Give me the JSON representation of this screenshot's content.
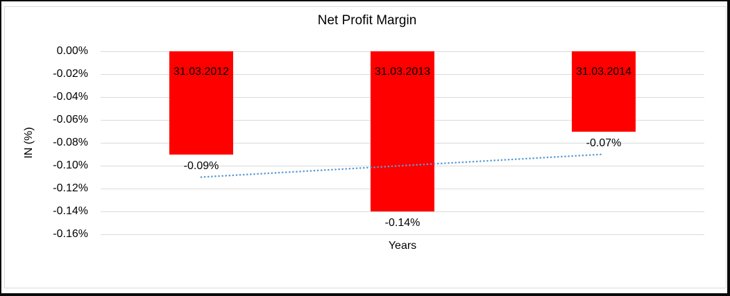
{
  "frame": {
    "background": "#ffffff",
    "border_color": "#0a0a0a",
    "inner_border_color": "#dcdcdc"
  },
  "chart_data": {
    "type": "bar",
    "title": "Net Profit Margin",
    "xlabel": "Years",
    "ylabel": "IN (%)",
    "categories": [
      "31.03.2012",
      "31.03.2013",
      "31.03.2014"
    ],
    "series": [
      {
        "name": "Net Profit Margin",
        "values": [
          -0.09,
          -0.14,
          -0.07
        ],
        "color": "#ff0000"
      }
    ],
    "value_labels": [
      "-0.09%",
      "-0.14%",
      "-0.07%"
    ],
    "y_ticks": [
      "0.00%",
      "-0.02%",
      "-0.04%",
      "-0.06%",
      "-0.08%",
      "-0.10%",
      "-0.12%",
      "-0.14%",
      "-0.16%"
    ],
    "ylim": [
      -0.16,
      0
    ],
    "y_tick_step": -0.02,
    "grid": true,
    "gridline_color": "#d9d9d9",
    "legend": "none",
    "trendline": {
      "style": "dotted",
      "color": "#5b9bd5",
      "start_value": -0.11,
      "end_value": -0.09
    }
  }
}
